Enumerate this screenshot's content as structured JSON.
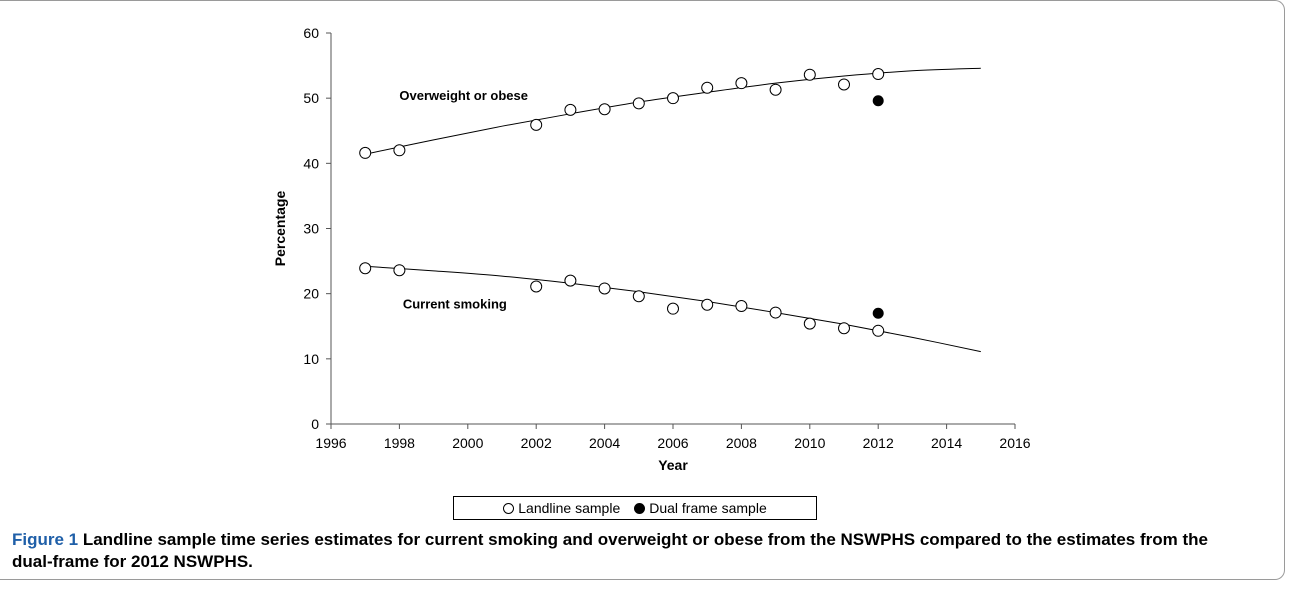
{
  "chart_data": {
    "type": "scatter",
    "xlabel": "Year",
    "ylabel": "Percentage",
    "xlim": [
      1996,
      2016
    ],
    "ylim": [
      0,
      60
    ],
    "xticks": [
      "1996",
      "1998",
      "2000",
      "2002",
      "2004",
      "2006",
      "2008",
      "2010",
      "2012",
      "2014",
      "2016"
    ],
    "yticks": [
      "0",
      "10",
      "20",
      "30",
      "40",
      "50",
      "60"
    ],
    "grid": false,
    "legend_position": "bottom",
    "series": [
      {
        "name": "Landline sample",
        "marker": "open-circle",
        "points": [
          {
            "x": 1997,
            "y": 41.6
          },
          {
            "x": 1998,
            "y": 42.0
          },
          {
            "x": 2002,
            "y": 45.9
          },
          {
            "x": 2003,
            "y": 48.2
          },
          {
            "x": 2004,
            "y": 48.3
          },
          {
            "x": 2005,
            "y": 49.2
          },
          {
            "x": 2006,
            "y": 50.0
          },
          {
            "x": 2007,
            "y": 51.6
          },
          {
            "x": 2008,
            "y": 52.3
          },
          {
            "x": 2009,
            "y": 51.3
          },
          {
            "x": 2010,
            "y": 53.6
          },
          {
            "x": 2011,
            "y": 52.1
          },
          {
            "x": 2012,
            "y": 53.7
          },
          {
            "x": 1997,
            "y": 23.9
          },
          {
            "x": 1998,
            "y": 23.6
          },
          {
            "x": 2002,
            "y": 21.1
          },
          {
            "x": 2003,
            "y": 22.0
          },
          {
            "x": 2004,
            "y": 20.8
          },
          {
            "x": 2005,
            "y": 19.6
          },
          {
            "x": 2006,
            "y": 17.7
          },
          {
            "x": 2007,
            "y": 18.3
          },
          {
            "x": 2008,
            "y": 18.1
          },
          {
            "x": 2009,
            "y": 17.1
          },
          {
            "x": 2010,
            "y": 15.4
          },
          {
            "x": 2011,
            "y": 14.7
          },
          {
            "x": 2012,
            "y": 14.3
          }
        ]
      },
      {
        "name": "Dual frame sample",
        "marker": "filled-circle",
        "points": [
          {
            "x": 2012,
            "y": 49.6
          },
          {
            "x": 2012,
            "y": 17.0
          }
        ]
      }
    ],
    "trend_lines": [
      {
        "label": "Overweight or obese",
        "x": [
          1997,
          1999,
          2001,
          2003,
          2005,
          2007,
          2009,
          2011,
          2013,
          2015
        ],
        "y": [
          41.4,
          43.6,
          45.7,
          47.6,
          49.4,
          50.9,
          52.3,
          53.4,
          54.2,
          54.6
        ]
      },
      {
        "label": "Current smoking",
        "x": [
          1997,
          1999,
          2001,
          2003,
          2005,
          2007,
          2009,
          2011,
          2013,
          2015
        ],
        "y": [
          24.2,
          23.5,
          22.7,
          21.6,
          20.3,
          18.8,
          17.1,
          15.3,
          13.3,
          11.1
        ]
      }
    ],
    "annotations": [
      {
        "text": "Overweight or obese",
        "x": 1998.0,
        "y": 50.0
      },
      {
        "text": "Current smoking",
        "x": 1998.1,
        "y": 18.0
      }
    ]
  },
  "legend": {
    "landline_label": "Landline sample",
    "dual_label": "Dual frame sample"
  },
  "caption": {
    "label": "Figure 1",
    "text": " Landline sample time series estimates for current smoking and overweight or obese from the NSWPHS compared to the estimates from the dual-frame for 2012 NSWPHS."
  }
}
